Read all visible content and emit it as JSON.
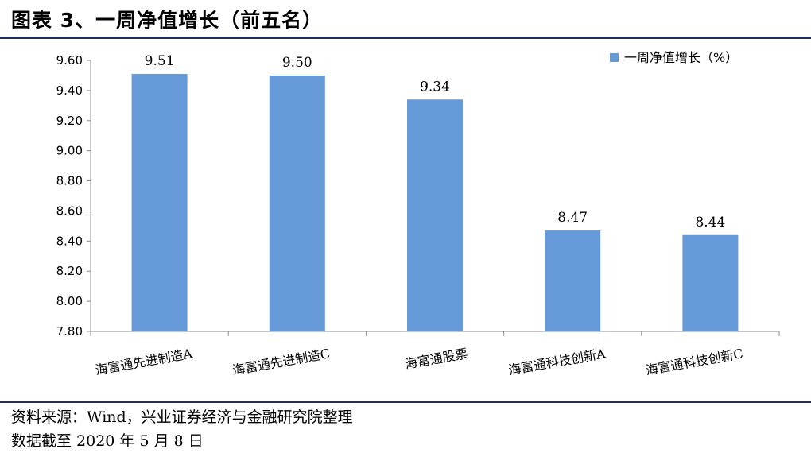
{
  "header": {
    "title": "图表 3、一周净值增长（前五名）"
  },
  "footer": {
    "source": "资料来源：Wind，兴业证券经济与金融研究院整理",
    "date_note": "数据截至 2020 年 5 月 8 日"
  },
  "chart_data": {
    "type": "bar",
    "title": "",
    "xlabel": "",
    "ylabel": "",
    "categories": [
      "海富通先进制造A",
      "海富通先进制造C",
      "海富通股票",
      "海富通科技创新A",
      "海富通科技创新C"
    ],
    "series": [
      {
        "name": "一周净值增长（%）",
        "values": [
          9.51,
          9.5,
          9.34,
          8.47,
          8.44
        ],
        "color": "#6699d8"
      }
    ],
    "data_labels": [
      "9.51",
      "9.50",
      "9.34",
      "8.47",
      "8.44"
    ],
    "ylim": [
      7.8,
      9.6
    ],
    "yticks": [
      "7.80",
      "8.00",
      "8.20",
      "8.40",
      "8.60",
      "8.80",
      "9.00",
      "9.20",
      "9.40",
      "9.60"
    ],
    "grid": false,
    "legend_position": "top-right",
    "category_label_rotation_deg": -10
  }
}
